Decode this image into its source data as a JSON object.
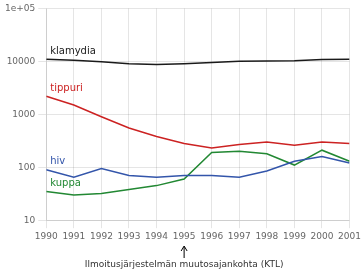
{
  "chart_data": {
    "type": "line",
    "x": [
      1990,
      1991,
      1992,
      1993,
      1994,
      1995,
      1996,
      1997,
      1998,
      1999,
      2000,
      2001
    ],
    "series": [
      {
        "name": "klamydia",
        "color": "#1a1a1a",
        "values": [
          11000,
          10500,
          9800,
          9000,
          8700,
          9000,
          9500,
          10000,
          10200,
          10300,
          10800,
          11000
        ]
      },
      {
        "name": "tippuri",
        "color": "#cc2222",
        "values": [
          2200,
          1500,
          900,
          550,
          380,
          280,
          230,
          270,
          300,
          260,
          300,
          280
        ]
      },
      {
        "name": "hiv",
        "color": "#3355aa",
        "values": [
          90,
          65,
          95,
          70,
          65,
          70,
          70,
          65,
          85,
          130,
          160,
          120
        ]
      },
      {
        "name": "kuppa",
        "color": "#228833",
        "values": [
          35,
          30,
          32,
          38,
          45,
          60,
          190,
          200,
          180,
          110,
          210,
          130
        ]
      }
    ],
    "xlim": [
      1990,
      2001
    ],
    "xticks": [
      1990,
      1991,
      1992,
      1993,
      1994,
      1995,
      1996,
      1997,
      1998,
      1999,
      2000,
      2001
    ],
    "ylim": [
      10,
      100000
    ],
    "yticks": [
      10,
      100,
      1000,
      10000,
      {
        "value": 100000,
        "label": "1e+05"
      }
    ],
    "log": "y",
    "grid": true,
    "annotations": [
      {
        "text": "Ilmoitusjärjestelmän muutosajankohta (KTL)",
        "x": 1995
      }
    ]
  }
}
